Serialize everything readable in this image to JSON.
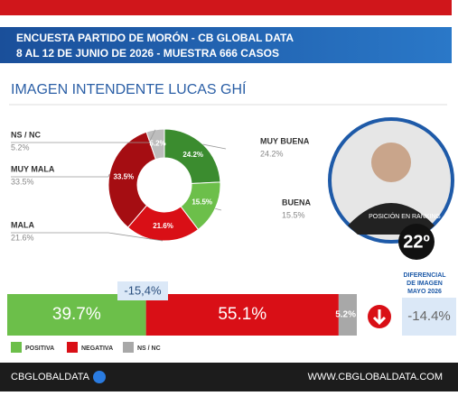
{
  "header": {
    "line1": "ENCUESTA PARTIDO DE MORÓN - CB GLOBAL DATA",
    "line2": "8 AL 12 DE JUNIO DE 2026 - MUESTRA 666 CASOS",
    "subtitle": "IMAGEN INTENDENTE  LUCAS GHÍ"
  },
  "profile": {
    "ranking_label": "POSICIÓN EN RANKING",
    "ranking": "22º"
  },
  "comparison": {
    "title": [
      "DIFERENCIAL",
      "DE IMAGEN",
      "MAYO 2026"
    ],
    "value": "-14.4%"
  },
  "footer": {
    "brand": "CBGLOBALDATA",
    "url": "WWW.CBGLOBALDATA.COM"
  },
  "chart_data": [
    {
      "type": "pie",
      "donut": true,
      "categories": [
        "MUY BUENA",
        "BUENA",
        "MALA",
        "MUY MALA",
        "NS / NC"
      ],
      "values": [
        24.2,
        15.5,
        21.6,
        33.5,
        5.2
      ],
      "value_labels": [
        "24.2%",
        "15.5%",
        "21.6%",
        "33.5%",
        "5.2%"
      ],
      "colors": [
        "#3b8c2f",
        "#6cbf4a",
        "#d90f16",
        "#a50d12",
        "#bdbdbd"
      ]
    },
    {
      "type": "bar",
      "stacked": true,
      "orientation": "horizontal",
      "annotation": "-15,4%",
      "series": [
        {
          "name": "POSITIVA",
          "color": "#6cbf4a",
          "values": [
            39.7
          ],
          "value_labels": [
            "39.7%"
          ]
        },
        {
          "name": "NEGATIVA",
          "color": "#d90f16",
          "values": [
            55.1
          ],
          "value_labels": [
            "55.1%"
          ]
        },
        {
          "name": "NS / NC",
          "color": "#a8a8a8",
          "values": [
            5.2
          ],
          "value_labels": [
            "5.2%"
          ]
        }
      ]
    }
  ]
}
